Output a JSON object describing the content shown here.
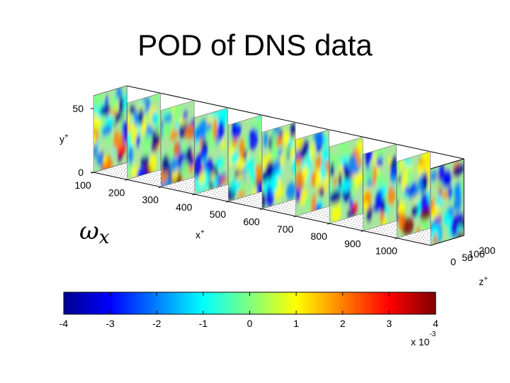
{
  "slide": {
    "title": "POD of DNS data"
  },
  "chart_data": [
    {
      "type": "heatmap",
      "subtype": "3d-slice-plot",
      "variable_label": "ω",
      "variable_subscript": "x",
      "slices_x": [
        100,
        200,
        300,
        400,
        500,
        600,
        700,
        800,
        900,
        1000,
        1100
      ],
      "x_axis": {
        "label": "x",
        "label_sup": "+",
        "ticks": [
          100,
          200,
          300,
          400,
          500,
          600,
          700,
          800,
          900,
          1000
        ]
      },
      "y_axis": {
        "label": "y",
        "label_sup": "+",
        "ticks": [
          0,
          50
        ],
        "ylim": [
          0,
          60
        ]
      },
      "z_axis": {
        "label": "z",
        "label_sup": "+",
        "ticks": [
          0,
          50,
          100,
          200
        ],
        "tick_labels": [
          "0",
          "50",
          "100",
          "200"
        ]
      },
      "colormap": "jet",
      "grid": false
    },
    {
      "type": "colorbar",
      "ticks": [
        -4,
        -3,
        -2,
        -1,
        0,
        1,
        2,
        3,
        4
      ],
      "range": [
        -4,
        4
      ],
      "multiplier_label": "x 10",
      "multiplier_exponent": "-3",
      "colormap": "jet"
    }
  ]
}
